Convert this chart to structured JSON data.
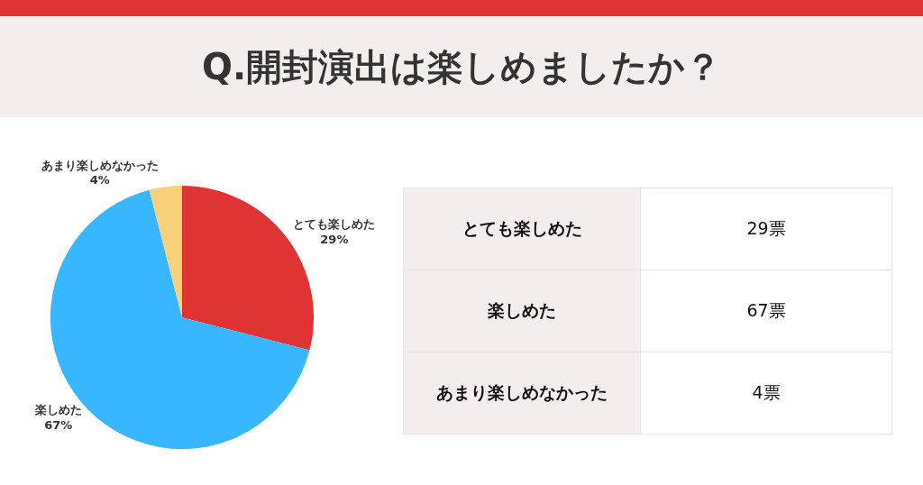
{
  "chart_data": [
    {
      "type": "pie",
      "title": "Q.開封演出は楽しめましたか？",
      "categories": [
        "とても楽しめた",
        "楽しめた",
        "あまり楽しめなかった"
      ],
      "values": [
        29,
        67,
        4
      ],
      "value_labels": [
        "29%",
        "67%",
        "4%"
      ],
      "colors": [
        "#e03333",
        "#38b6ff",
        "#f8d07a"
      ],
      "legend": false
    },
    {
      "type": "other",
      "categories": [
        "とても楽しめた",
        "楽しめた",
        "あまり楽しめなかった"
      ],
      "values": [
        29,
        67,
        4
      ],
      "value_labels": [
        "29票",
        "67票",
        "4票"
      ]
    }
  ]
}
